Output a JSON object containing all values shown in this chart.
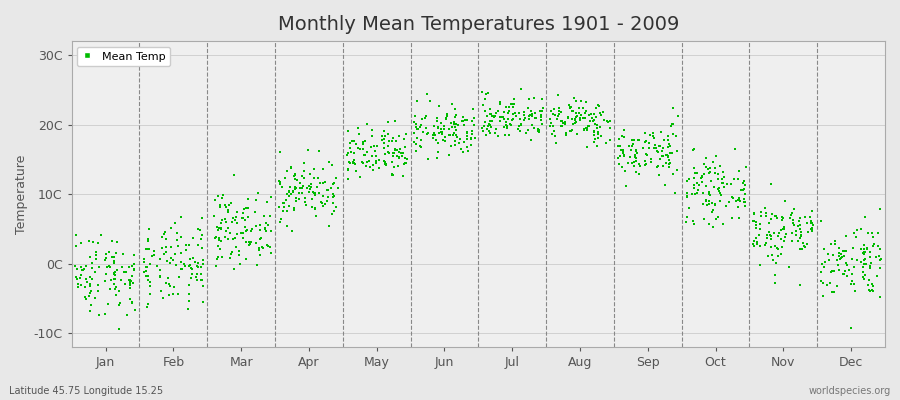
{
  "title": "Monthly Mean Temperatures 1901 - 2009",
  "ylabel": "Temperature",
  "subtitle_left": "Latitude 45.75 Longitude 15.25",
  "subtitle_right": "worldspecies.org",
  "legend_label": "Mean Temp",
  "dot_color": "#00BB00",
  "bg_color": "#E8E8E8",
  "plot_bg_color": "#EFEFEF",
  "yticks": [
    -10,
    0,
    10,
    20,
    30
  ],
  "ytick_labels": [
    "-10C",
    "0C",
    "10C",
    "20C",
    "30C"
  ],
  "ylim": [
    -12,
    32
  ],
  "months": [
    "Jan",
    "Feb",
    "Mar",
    "Apr",
    "May",
    "Jun",
    "Jul",
    "Aug",
    "Sep",
    "Oct",
    "Nov",
    "Dec"
  ],
  "n_years": 109,
  "monthly_means": [
    -1.5,
    -0.5,
    5.0,
    10.5,
    15.5,
    19.0,
    21.0,
    20.5,
    16.0,
    10.5,
    4.5,
    0.5
  ],
  "monthly_stds": [
    3.0,
    3.0,
    2.5,
    2.2,
    2.0,
    1.8,
    1.6,
    1.6,
    2.0,
    2.2,
    2.5,
    2.8
  ],
  "seed": 42,
  "dot_size": 2,
  "title_fontsize": 14,
  "axis_fontsize": 9,
  "small_fontsize": 7
}
